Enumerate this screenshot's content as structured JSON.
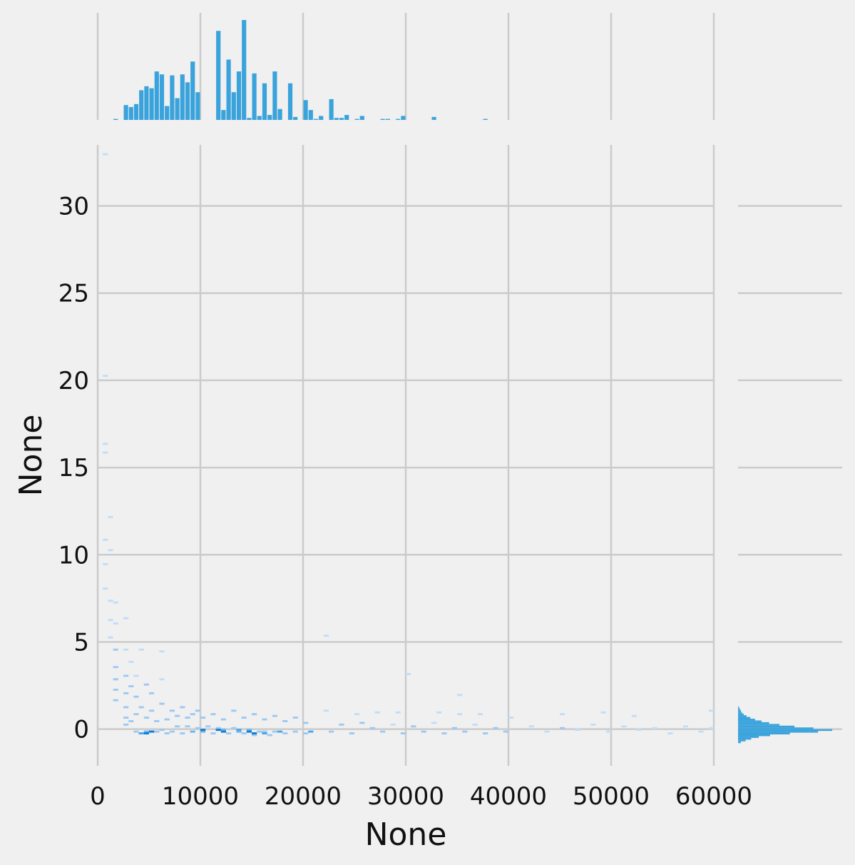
{
  "chart_data": {
    "type": "jointplot-histogram",
    "xlabel": "None",
    "ylabel": "None",
    "xlim": [
      0,
      60000
    ],
    "ylim": [
      -2.1,
      33.5
    ],
    "xticks": [
      0,
      10000,
      20000,
      30000,
      40000,
      50000,
      60000
    ],
    "xtick_labels": [
      "0",
      "10000",
      "20000",
      "30000",
      "40000",
      "50000",
      "60000"
    ],
    "yticks": [
      0,
      5,
      10,
      15,
      20,
      25,
      30
    ],
    "ytick_labels": [
      "0",
      "5",
      "10",
      "15",
      "20",
      "25",
      "30"
    ],
    "grid": true,
    "colors": {
      "background": "#f0f0f0",
      "grid": "#cbcbcb",
      "bar": "#3ba3dc",
      "heat_light": "#9ec9f1",
      "heat_mid": "#4aa6ec",
      "heat_dark": "#0a7fd8"
    },
    "marginal_x_hist": {
      "bin_width": 500,
      "bins": [
        [
          1500,
          1
        ],
        [
          2500,
          15
        ],
        [
          3000,
          13
        ],
        [
          3500,
          16
        ],
        [
          4000,
          30
        ],
        [
          4500,
          34
        ],
        [
          5000,
          32
        ],
        [
          5500,
          49
        ],
        [
          6000,
          46
        ],
        [
          6500,
          14
        ],
        [
          7000,
          45
        ],
        [
          7500,
          22
        ],
        [
          8000,
          46
        ],
        [
          8500,
          38
        ],
        [
          9000,
          59
        ],
        [
          9500,
          28
        ],
        [
          11500,
          90
        ],
        [
          12000,
          10
        ],
        [
          12500,
          61
        ],
        [
          13000,
          28
        ],
        [
          13500,
          49
        ],
        [
          14000,
          101
        ],
        [
          14500,
          2
        ],
        [
          15000,
          47
        ],
        [
          15500,
          4
        ],
        [
          16000,
          37
        ],
        [
          16500,
          5
        ],
        [
          17000,
          49
        ],
        [
          17500,
          11
        ],
        [
          18500,
          37
        ],
        [
          19000,
          3
        ],
        [
          20000,
          20
        ],
        [
          20500,
          10
        ],
        [
          21000,
          1
        ],
        [
          21500,
          4
        ],
        [
          22500,
          21
        ],
        [
          23000,
          2
        ],
        [
          23500,
          2
        ],
        [
          24000,
          5
        ],
        [
          25000,
          1
        ],
        [
          25500,
          4
        ],
        [
          27500,
          1
        ],
        [
          28000,
          1
        ],
        [
          29000,
          1
        ],
        [
          29500,
          4
        ],
        [
          32500,
          3
        ],
        [
          37500,
          1
        ]
      ]
    },
    "marginal_y_hist": {
      "bin_width": 0.1,
      "profile": [
        [
          -0.8,
          3
        ],
        [
          -0.7,
          8
        ],
        [
          -0.6,
          14
        ],
        [
          -0.5,
          22
        ],
        [
          -0.4,
          34
        ],
        [
          -0.3,
          55
        ],
        [
          -0.2,
          85
        ],
        [
          -0.1,
          100
        ],
        [
          0.0,
          80
        ],
        [
          0.1,
          60
        ],
        [
          0.2,
          44
        ],
        [
          0.3,
          33
        ],
        [
          0.4,
          25
        ],
        [
          0.5,
          18
        ],
        [
          0.6,
          13
        ],
        [
          0.7,
          9
        ],
        [
          0.8,
          6
        ],
        [
          0.9,
          4
        ],
        [
          1.0,
          3
        ],
        [
          1.1,
          2
        ],
        [
          1.2,
          1
        ]
      ]
    },
    "joint_hist": {
      "cells": [
        [
          500,
          32.9,
          1
        ],
        [
          500,
          20.2,
          1
        ],
        [
          500,
          16.3,
          1
        ],
        [
          500,
          15.8,
          1
        ],
        [
          500,
          10.8,
          1
        ],
        [
          1000,
          12.1,
          1
        ],
        [
          1000,
          10.2,
          1
        ],
        [
          500,
          9.4,
          1
        ],
        [
          500,
          8.0,
          1
        ],
        [
          1000,
          7.3,
          1
        ],
        [
          1000,
          6.2,
          1
        ],
        [
          1000,
          5.2,
          1
        ],
        [
          1500,
          7.2,
          1
        ],
        [
          1500,
          6.0,
          1
        ],
        [
          2500,
          6.3,
          1
        ],
        [
          1500,
          4.5,
          2
        ],
        [
          1500,
          3.5,
          2
        ],
        [
          1500,
          2.8,
          2
        ],
        [
          1500,
          2.2,
          2
        ],
        [
          1500,
          1.6,
          2
        ],
        [
          2500,
          4.5,
          1
        ],
        [
          3000,
          3.8,
          1
        ],
        [
          3500,
          3.0,
          1
        ],
        [
          4000,
          4.5,
          1
        ],
        [
          2500,
          3.0,
          2
        ],
        [
          2500,
          2.0,
          2
        ],
        [
          3000,
          2.4,
          2
        ],
        [
          3500,
          1.8,
          2
        ],
        [
          4500,
          2.5,
          2
        ],
        [
          5000,
          2.0,
          2
        ],
        [
          6000,
          4.4,
          1
        ],
        [
          6000,
          2.8,
          1
        ],
        [
          2500,
          1.2,
          2
        ],
        [
          2500,
          0.6,
          2
        ],
        [
          2500,
          0.2,
          2
        ],
        [
          3000,
          0.4,
          2
        ],
        [
          3500,
          0.8,
          2
        ],
        [
          4000,
          1.2,
          2
        ],
        [
          4500,
          0.6,
          2
        ],
        [
          5000,
          1.0,
          2
        ],
        [
          5500,
          0.4,
          2
        ],
        [
          6000,
          1.4,
          2
        ],
        [
          6500,
          0.5,
          2
        ],
        [
          7000,
          1.0,
          2
        ],
        [
          7500,
          0.7,
          2
        ],
        [
          8000,
          1.2,
          2
        ],
        [
          8500,
          0.6,
          2
        ],
        [
          9000,
          0.8,
          2
        ],
        [
          9500,
          1.0,
          2
        ],
        [
          10000,
          0.6,
          2
        ],
        [
          11000,
          0.8,
          2
        ],
        [
          12000,
          0.5,
          2
        ],
        [
          13000,
          1.0,
          2
        ],
        [
          14000,
          0.6,
          2
        ],
        [
          15000,
          0.8,
          2
        ],
        [
          16000,
          0.5,
          2
        ],
        [
          17000,
          0.7,
          2
        ],
        [
          18000,
          0.4,
          2
        ],
        [
          19000,
          0.6,
          2
        ],
        [
          20000,
          0.3,
          2
        ],
        [
          3500,
          -0.2,
          2
        ],
        [
          4500,
          -0.2,
          3
        ],
        [
          5000,
          -0.2,
          3
        ],
        [
          5500,
          -0.2,
          2
        ],
        [
          6000,
          -0.1,
          2
        ],
        [
          6500,
          -0.3,
          2
        ],
        [
          7000,
          -0.2,
          2
        ],
        [
          7500,
          0.1,
          2
        ],
        [
          8000,
          -0.3,
          2
        ],
        [
          8500,
          0.1,
          2
        ],
        [
          9000,
          -0.2,
          3
        ],
        [
          9500,
          0.0,
          2
        ],
        [
          10000,
          -0.2,
          3
        ],
        [
          10500,
          0.1,
          2
        ],
        [
          11000,
          -0.3,
          2
        ],
        [
          11500,
          0.0,
          2
        ],
        [
          12000,
          -0.1,
          3
        ],
        [
          12500,
          -0.3,
          2
        ],
        [
          13000,
          0.0,
          2
        ],
        [
          13500,
          -0.2,
          3
        ],
        [
          14000,
          -0.3,
          2
        ],
        [
          14500,
          -0.1,
          3
        ],
        [
          15000,
          -0.4,
          2
        ],
        [
          15500,
          -0.2,
          2
        ],
        [
          16000,
          -0.2,
          2
        ],
        [
          16500,
          -0.4,
          2
        ],
        [
          17000,
          -0.2,
          2
        ],
        [
          18000,
          -0.3,
          2
        ],
        [
          19000,
          -0.2,
          2
        ],
        [
          20000,
          -0.3,
          2
        ],
        [
          22000,
          1.0,
          1
        ],
        [
          22500,
          -0.2,
          2
        ],
        [
          23500,
          0.2,
          2
        ],
        [
          24500,
          -0.3,
          2
        ],
        [
          25500,
          0.3,
          2
        ],
        [
          26500,
          0.0,
          2
        ],
        [
          27500,
          -0.2,
          2
        ],
        [
          28500,
          0.2,
          1
        ],
        [
          29500,
          -0.3,
          2
        ],
        [
          30500,
          0.1,
          2
        ],
        [
          31500,
          -0.2,
          2
        ],
        [
          32500,
          0.3,
          1
        ],
        [
          33500,
          -0.3,
          2
        ],
        [
          34500,
          0.0,
          2
        ],
        [
          35500,
          -0.2,
          2
        ],
        [
          36500,
          0.2,
          1
        ],
        [
          37500,
          -0.3,
          2
        ],
        [
          38500,
          0.0,
          2
        ],
        [
          39500,
          -0.2,
          2
        ],
        [
          42000,
          0.1,
          1
        ],
        [
          43500,
          -0.2,
          1
        ],
        [
          45000,
          0.0,
          2
        ],
        [
          46500,
          -0.1,
          1
        ],
        [
          48000,
          0.2,
          1
        ],
        [
          49500,
          -0.2,
          1
        ],
        [
          51000,
          0.1,
          1
        ],
        [
          52500,
          -0.1,
          1
        ],
        [
          54000,
          0.0,
          1
        ],
        [
          55500,
          -0.3,
          1
        ],
        [
          57000,
          0.1,
          1
        ],
        [
          58500,
          -0.2,
          1
        ],
        [
          59500,
          0.0,
          1
        ],
        [
          4000,
          -0.3,
          4
        ],
        [
          4500,
          -0.3,
          5
        ],
        [
          5000,
          -0.2,
          5
        ],
        [
          10000,
          -0.1,
          5
        ],
        [
          11500,
          -0.1,
          6
        ],
        [
          12000,
          -0.2,
          6
        ],
        [
          13500,
          -0.1,
          4
        ],
        [
          14500,
          -0.2,
          6
        ],
        [
          15000,
          -0.3,
          5
        ],
        [
          16000,
          -0.3,
          4
        ],
        [
          17500,
          -0.2,
          4
        ],
        [
          20500,
          -0.2,
          4
        ],
        [
          22000,
          5.3,
          1
        ],
        [
          30000,
          3.1,
          1
        ],
        [
          35000,
          1.9,
          1
        ],
        [
          35000,
          0.8,
          1
        ],
        [
          40000,
          0.6,
          1
        ],
        [
          45000,
          0.8,
          1
        ],
        [
          49000,
          0.9,
          1
        ],
        [
          59500,
          1.0,
          1
        ],
        [
          25000,
          0.8,
          1
        ],
        [
          27000,
          0.9,
          1
        ],
        [
          29000,
          0.9,
          1
        ],
        [
          33000,
          0.9,
          1
        ],
        [
          37000,
          0.8,
          1
        ],
        [
          52000,
          0.7,
          1
        ]
      ]
    }
  }
}
